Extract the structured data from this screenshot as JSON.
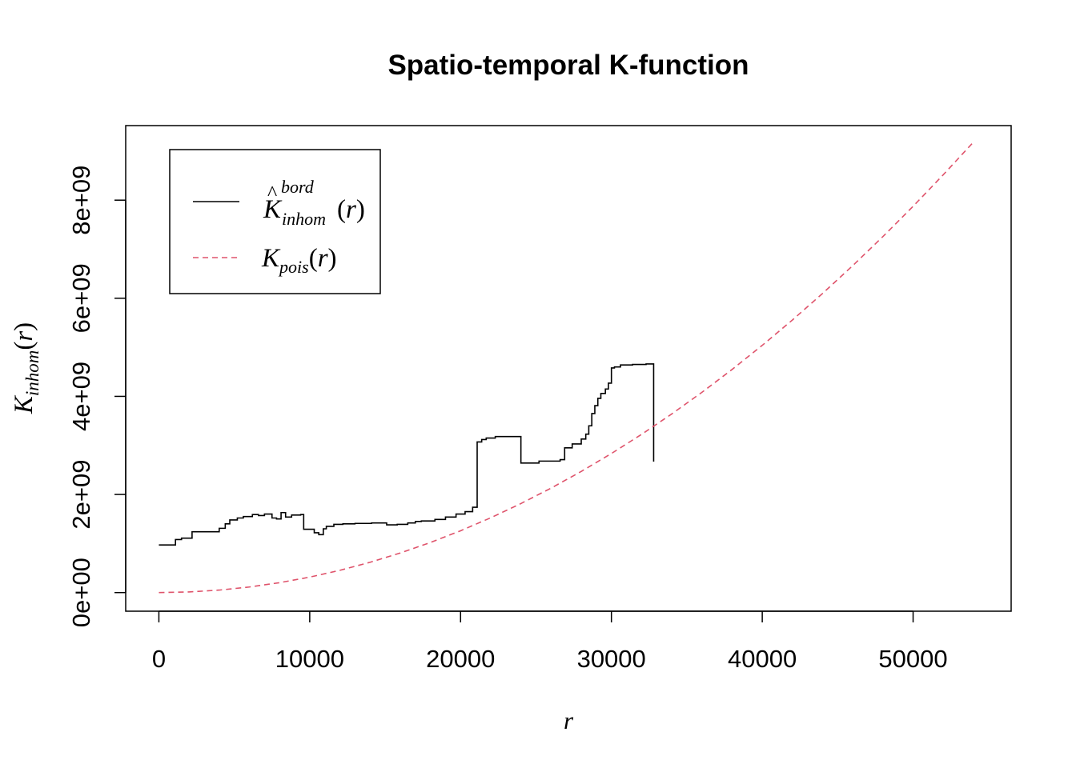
{
  "chart_data": {
    "type": "line",
    "title": "Spatio-temporal K-function",
    "xlabel": "r",
    "ylabel": {
      "main": "K",
      "subscript": "inhom",
      "paren_open": "(",
      "arg": "r",
      "paren_close": ")"
    },
    "xlim": [
      -2200,
      56500
    ],
    "ylim": [
      -380000000,
      9520000000
    ],
    "x_ticks": [
      0,
      10000,
      20000,
      30000,
      40000,
      50000
    ],
    "x_tick_labels": [
      "0",
      "10000",
      "20000",
      "30000",
      "40000",
      "50000"
    ],
    "y_ticks": [
      0,
      2000000000,
      4000000000,
      6000000000,
      8000000000
    ],
    "y_tick_labels": [
      "0e+00",
      "2e+09",
      "4e+09",
      "6e+09",
      "8e+09"
    ],
    "grid": false,
    "legend_position": "top-left",
    "series": [
      {
        "name": "K̂_inhom^bord(r)",
        "legend": {
          "hat_base": "K",
          "superscript": "bord",
          "subscript": "inhom",
          "paren_open": "(",
          "arg": "r",
          "paren_close": ")"
        },
        "color": "#000000",
        "line_style": "solid",
        "step": true,
        "x": [
          0,
          1100,
          1500,
          2200,
          4000,
          4400,
          4700,
          5200,
          5600,
          6200,
          6600,
          7000,
          7500,
          7800,
          8100,
          8400,
          8800,
          9400,
          9600,
          10300,
          10600,
          10900,
          11100,
          11600,
          12200,
          13000,
          14100,
          15100,
          15800,
          16500,
          17000,
          17400,
          18300,
          19000,
          19700,
          20300,
          20800,
          21100,
          21400,
          21700,
          22300,
          24000,
          25200,
          26600,
          26900,
          27400,
          28000,
          28300,
          28500,
          28700,
          28900,
          29100,
          29300,
          29600,
          29800,
          30000,
          30200,
          30600,
          31400,
          32300,
          32700,
          32800
        ],
        "y": [
          970000000,
          1080000000,
          1110000000,
          1240000000,
          1310000000,
          1400000000,
          1480000000,
          1520000000,
          1550000000,
          1590000000,
          1570000000,
          1600000000,
          1520000000,
          1500000000,
          1630000000,
          1540000000,
          1580000000,
          1590000000,
          1290000000,
          1220000000,
          1180000000,
          1300000000,
          1350000000,
          1390000000,
          1400000000,
          1410000000,
          1420000000,
          1380000000,
          1390000000,
          1420000000,
          1450000000,
          1460000000,
          1490000000,
          1540000000,
          1600000000,
          1650000000,
          1740000000,
          3070000000,
          3120000000,
          3150000000,
          3180000000,
          2640000000,
          2680000000,
          2710000000,
          2950000000,
          3030000000,
          3130000000,
          3230000000,
          3400000000,
          3650000000,
          3810000000,
          3960000000,
          4060000000,
          4150000000,
          4270000000,
          4580000000,
          4600000000,
          4640000000,
          4650000000,
          4660000000,
          4660000000,
          2670000000
        ]
      },
      {
        "name": "K_pois(r)",
        "legend": {
          "main": "K",
          "subscript": "pois",
          "paren_open": "(",
          "arg": "r",
          "paren_close": ")"
        },
        "color": "#DF536B",
        "line_style": "dashed",
        "step": false,
        "x": [
          0,
          2000,
          4000,
          6000,
          8000,
          10000,
          12000,
          14000,
          16000,
          18000,
          20000,
          22000,
          24000,
          26000,
          28000,
          30000,
          32000,
          34000,
          36000,
          38000,
          40000,
          42000,
          44000,
          46000,
          48000,
          50000,
          52000,
          53900
        ],
        "y": [
          0,
          12600000,
          50400000,
          113400000,
          201600000,
          315000000,
          453600000,
          617400000,
          806400000,
          1020600000,
          1260000000,
          1524600000,
          1814400000,
          2129400000,
          2469600000,
          2835000000,
          3225600000,
          3641400000,
          4082400000,
          4548600000,
          5040000000,
          5556600000,
          6098400000,
          6665400000,
          7257600000,
          7875000000,
          8517600000,
          9150000000
        ]
      }
    ]
  }
}
